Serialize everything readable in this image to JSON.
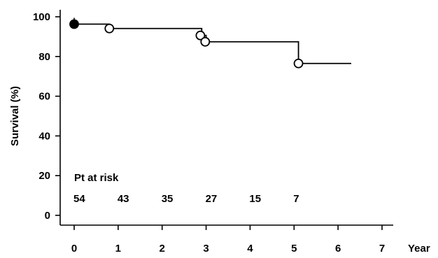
{
  "chart_data": {
    "type": "line",
    "title": "",
    "xlabel": "Year",
    "ylabel": "Survival (%)",
    "xlim": [
      0,
      7
    ],
    "ylim": [
      0,
      100
    ],
    "x_ticks": [
      0,
      1,
      2,
      3,
      4,
      5,
      6,
      7
    ],
    "y_ticks": [
      0,
      20,
      40,
      60,
      80,
      100
    ],
    "grid": false,
    "series": [
      {
        "step": true,
        "points": [
          {
            "x": 0.0,
            "y": 96.3
          },
          {
            "x": 0.8,
            "y": 94.1
          },
          {
            "x": 2.9,
            "y": 90.6
          },
          {
            "x": 3.0,
            "y": 87.4
          },
          {
            "x": 5.1,
            "y": 76.5
          },
          {
            "x": 6.3,
            "y": 76.5
          }
        ],
        "markers": [
          {
            "x": 0.0,
            "y": 96.3,
            "filled": true
          },
          {
            "x": 0.8,
            "y": 94.1,
            "filled": false
          },
          {
            "x": 2.87,
            "y": 90.6,
            "filled": false
          },
          {
            "x": 2.98,
            "y": 87.4,
            "filled": false
          },
          {
            "x": 5.1,
            "y": 76.5,
            "filled": false
          }
        ]
      }
    ],
    "at_risk": {
      "title": "Pt at risk",
      "years": [
        0,
        1,
        2,
        3,
        4,
        5
      ],
      "counts": [
        "54",
        "43",
        "35",
        "27",
        "15",
        "7"
      ]
    }
  }
}
